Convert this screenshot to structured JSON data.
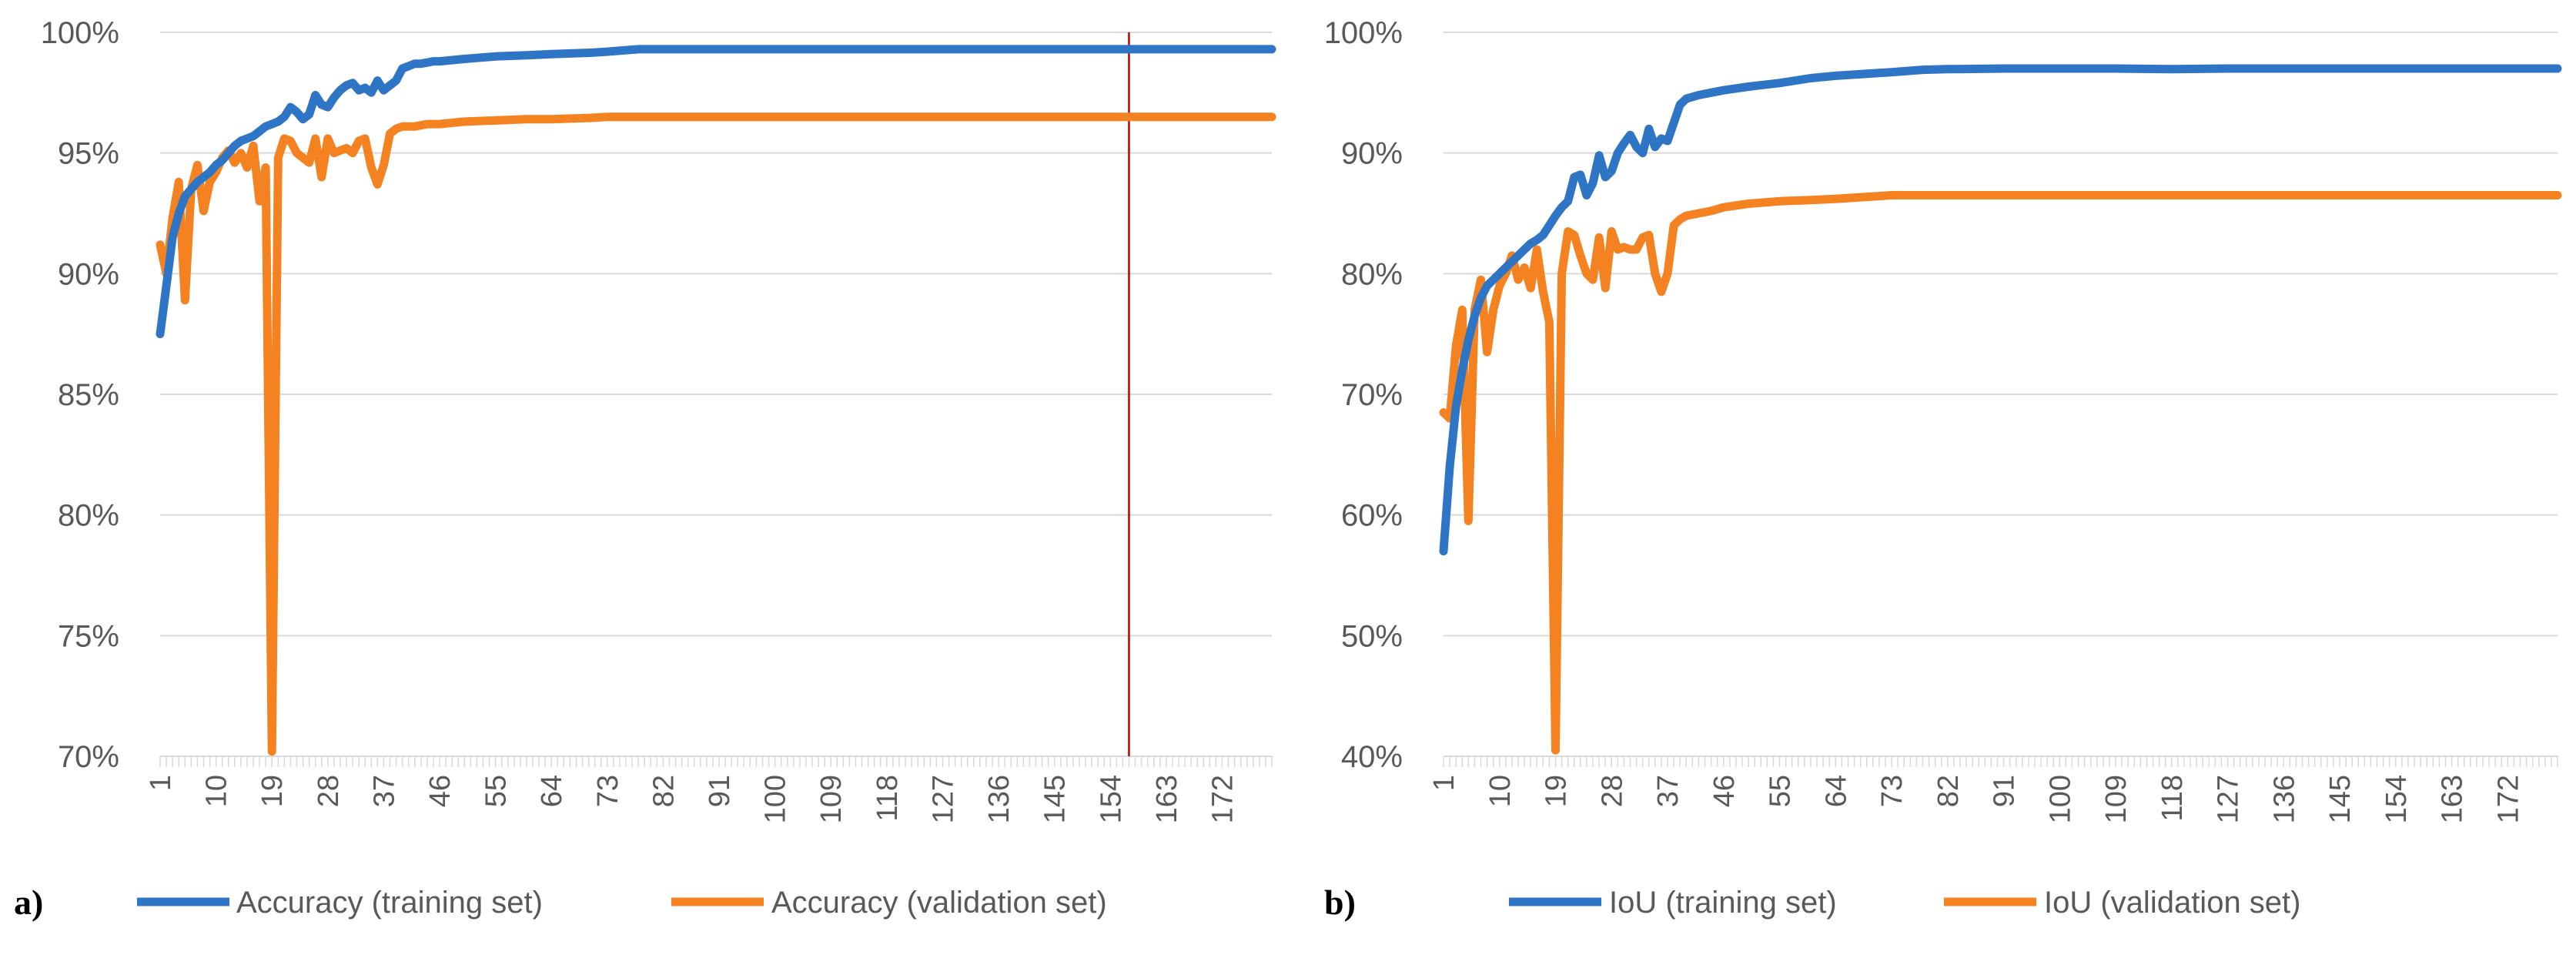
{
  "chart_data": [
    {
      "type": "line",
      "panel_label": "a)",
      "x_tick_labels": [
        "1",
        "10",
        "19",
        "28",
        "37",
        "46",
        "55",
        "64",
        "73",
        "82",
        "91",
        "100",
        "109",
        "118",
        "127",
        "136",
        "145",
        "154",
        "163",
        "172"
      ],
      "x_range": [
        1,
        180
      ],
      "y_tick_labels": [
        "100%",
        "95%",
        "90%",
        "85%",
        "80%",
        "75%",
        "70%"
      ],
      "ylim": [
        70,
        100
      ],
      "y_unit": "%",
      "grid": true,
      "legend_position": "bottom",
      "reference_line_x": 157,
      "colors": {
        "training": "#2e75c6",
        "validation": "#f58221",
        "reference_line": "#c00000"
      },
      "series": [
        {
          "name": "Accuracy (training set)",
          "key": "training",
          "points": [
            [
              1,
              87.5
            ],
            [
              2,
              89.5
            ],
            [
              3,
              91.5
            ],
            [
              4,
              92.5
            ],
            [
              5,
              93.2
            ],
            [
              6,
              93.5
            ],
            [
              7,
              93.8
            ],
            [
              8,
              94.0
            ],
            [
              9,
              94.2
            ],
            [
              10,
              94.5
            ],
            [
              11,
              94.7
            ],
            [
              12,
              95.0
            ],
            [
              13,
              95.3
            ],
            [
              14,
              95.5
            ],
            [
              15,
              95.6
            ],
            [
              16,
              95.7
            ],
            [
              17,
              95.9
            ],
            [
              18,
              96.1
            ],
            [
              19,
              96.2
            ],
            [
              20,
              96.3
            ],
            [
              21,
              96.5
            ],
            [
              22,
              96.9
            ],
            [
              23,
              96.7
            ],
            [
              24,
              96.4
            ],
            [
              25,
              96.6
            ],
            [
              26,
              97.4
            ],
            [
              27,
              97.0
            ],
            [
              28,
              96.9
            ],
            [
              29,
              97.3
            ],
            [
              30,
              97.6
            ],
            [
              31,
              97.8
            ],
            [
              32,
              97.9
            ],
            [
              33,
              97.6
            ],
            [
              34,
              97.7
            ],
            [
              35,
              97.5
            ],
            [
              36,
              98.0
            ],
            [
              37,
              97.6
            ],
            [
              38,
              97.8
            ],
            [
              39,
              98.0
            ],
            [
              40,
              98.5
            ],
            [
              41,
              98.6
            ],
            [
              42,
              98.7
            ],
            [
              43,
              98.7
            ],
            [
              44,
              98.75
            ],
            [
              45,
              98.8
            ],
            [
              46,
              98.8
            ],
            [
              50,
              98.9
            ],
            [
              55,
              99.0
            ],
            [
              60,
              99.05
            ],
            [
              64,
              99.1
            ],
            [
              70,
              99.15
            ],
            [
              73,
              99.2
            ],
            [
              78,
              99.3
            ],
            [
              82,
              99.3
            ],
            [
              91,
              99.3
            ],
            [
              100,
              99.3
            ],
            [
              109,
              99.3
            ],
            [
              118,
              99.3
            ],
            [
              127,
              99.3
            ],
            [
              136,
              99.3
            ],
            [
              145,
              99.3
            ],
            [
              154,
              99.3
            ],
            [
              163,
              99.3
            ],
            [
              172,
              99.3
            ],
            [
              180,
              99.3
            ]
          ]
        },
        {
          "name": "Accuracy (validation set)",
          "key": "validation",
          "points": [
            [
              1,
              91.2
            ],
            [
              2,
              90.0
            ],
            [
              3,
              92.3
            ],
            [
              4,
              93.8
            ],
            [
              5,
              88.9
            ],
            [
              6,
              93.5
            ],
            [
              7,
              94.5
            ],
            [
              8,
              92.6
            ],
            [
              9,
              93.8
            ],
            [
              10,
              94.2
            ],
            [
              11,
              94.8
            ],
            [
              12,
              95.1
            ],
            [
              13,
              94.6
            ],
            [
              14,
              95.0
            ],
            [
              15,
              94.4
            ],
            [
              16,
              95.3
            ],
            [
              17,
              93.0
            ],
            [
              18,
              94.4
            ],
            [
              19,
              70.2
            ],
            [
              20,
              94.8
            ],
            [
              21,
              95.6
            ],
            [
              22,
              95.5
            ],
            [
              23,
              95.0
            ],
            [
              24,
              94.8
            ],
            [
              25,
              94.6
            ],
            [
              26,
              95.6
            ],
            [
              27,
              94.0
            ],
            [
              28,
              95.6
            ],
            [
              29,
              95.0
            ],
            [
              30,
              95.1
            ],
            [
              31,
              95.2
            ],
            [
              32,
              95.0
            ],
            [
              33,
              95.5
            ],
            [
              34,
              95.6
            ],
            [
              35,
              94.4
            ],
            [
              36,
              93.7
            ],
            [
              37,
              94.5
            ],
            [
              38,
              95.8
            ],
            [
              39,
              96.0
            ],
            [
              40,
              96.1
            ],
            [
              42,
              96.1
            ],
            [
              44,
              96.2
            ],
            [
              46,
              96.2
            ],
            [
              50,
              96.3
            ],
            [
              55,
              96.35
            ],
            [
              60,
              96.4
            ],
            [
              64,
              96.4
            ],
            [
              70,
              96.45
            ],
            [
              73,
              96.5
            ],
            [
              82,
              96.5
            ],
            [
              91,
              96.5
            ],
            [
              100,
              96.5
            ],
            [
              109,
              96.5
            ],
            [
              118,
              96.5
            ],
            [
              127,
              96.5
            ],
            [
              136,
              96.5
            ],
            [
              145,
              96.5
            ],
            [
              154,
              96.5
            ],
            [
              163,
              96.5
            ],
            [
              172,
              96.5
            ],
            [
              180,
              96.5
            ]
          ]
        }
      ]
    },
    {
      "type": "line",
      "panel_label": "b)",
      "x_tick_labels": [
        "1",
        "10",
        "19",
        "28",
        "37",
        "46",
        "55",
        "64",
        "73",
        "82",
        "91",
        "100",
        "109",
        "118",
        "127",
        "136",
        "145",
        "154",
        "163",
        "172"
      ],
      "x_range": [
        1,
        180
      ],
      "y_tick_labels": [
        "100%",
        "90%",
        "80%",
        "70%",
        "60%",
        "50%",
        "40%"
      ],
      "ylim": [
        40,
        100
      ],
      "y_unit": "%",
      "grid": true,
      "legend_position": "bottom",
      "colors": {
        "training": "#2e75c6",
        "validation": "#f58221"
      },
      "series": [
        {
          "name": "IoU (training set)",
          "key": "training",
          "points": [
            [
              1,
              57.0
            ],
            [
              2,
              64.0
            ],
            [
              3,
              69.0
            ],
            [
              4,
              72.0
            ],
            [
              5,
              74.5
            ],
            [
              6,
              76.5
            ],
            [
              7,
              78.0
            ],
            [
              8,
              79.0
            ],
            [
              9,
              79.5
            ],
            [
              10,
              80.0
            ],
            [
              11,
              80.5
            ],
            [
              12,
              81.0
            ],
            [
              13,
              81.5
            ],
            [
              14,
              82.0
            ],
            [
              15,
              82.5
            ],
            [
              16,
              82.8
            ],
            [
              17,
              83.2
            ],
            [
              18,
              84.0
            ],
            [
              19,
              84.8
            ],
            [
              20,
              85.5
            ],
            [
              21,
              86.0
            ],
            [
              22,
              88.0
            ],
            [
              23,
              88.2
            ],
            [
              24,
              86.5
            ],
            [
              25,
              87.5
            ],
            [
              26,
              89.8
            ],
            [
              27,
              88.0
            ],
            [
              28,
              88.5
            ],
            [
              29,
              90.0
            ],
            [
              30,
              90.8
            ],
            [
              31,
              91.5
            ],
            [
              32,
              90.5
            ],
            [
              33,
              90.0
            ],
            [
              34,
              92.0
            ],
            [
              35,
              90.5
            ],
            [
              36,
              91.2
            ],
            [
              37,
              91.0
            ],
            [
              38,
              92.5
            ],
            [
              39,
              94.0
            ],
            [
              40,
              94.5
            ],
            [
              42,
              94.8
            ],
            [
              44,
              95.0
            ],
            [
              46,
              95.2
            ],
            [
              50,
              95.5
            ],
            [
              55,
              95.8
            ],
            [
              60,
              96.2
            ],
            [
              64,
              96.4
            ],
            [
              70,
              96.6
            ],
            [
              73,
              96.7
            ],
            [
              78,
              96.9
            ],
            [
              82,
              96.95
            ],
            [
              91,
              97.0
            ],
            [
              100,
              97.0
            ],
            [
              109,
              97.0
            ],
            [
              118,
              96.95
            ],
            [
              127,
              97.0
            ],
            [
              136,
              97.0
            ],
            [
              145,
              97.0
            ],
            [
              154,
              97.0
            ],
            [
              163,
              97.0
            ],
            [
              172,
              97.0
            ],
            [
              180,
              97.0
            ]
          ]
        },
        {
          "name": "IoU (validation set)",
          "key": "validation",
          "points": [
            [
              1,
              68.5
            ],
            [
              2,
              68.0
            ],
            [
              3,
              74.0
            ],
            [
              4,
              77.0
            ],
            [
              5,
              59.5
            ],
            [
              6,
              77.0
            ],
            [
              7,
              79.5
            ],
            [
              8,
              73.5
            ],
            [
              9,
              77.0
            ],
            [
              10,
              79.0
            ],
            [
              11,
              80.0
            ],
            [
              12,
              81.5
            ],
            [
              13,
              79.5
            ],
            [
              14,
              80.5
            ],
            [
              15,
              78.8
            ],
            [
              16,
              82.0
            ],
            [
              17,
              78.5
            ],
            [
              18,
              76.0
            ],
            [
              19,
              40.5
            ],
            [
              20,
              80.0
            ],
            [
              21,
              83.5
            ],
            [
              22,
              83.2
            ],
            [
              23,
              81.5
            ],
            [
              24,
              80.0
            ],
            [
              25,
              79.5
            ],
            [
              26,
              83.0
            ],
            [
              27,
              78.8
            ],
            [
              28,
              83.5
            ],
            [
              29,
              82.0
            ],
            [
              30,
              82.2
            ],
            [
              31,
              82.0
            ],
            [
              32,
              82.0
            ],
            [
              33,
              83.0
            ],
            [
              34,
              83.2
            ],
            [
              35,
              80.0
            ],
            [
              36,
              78.5
            ],
            [
              37,
              80.0
            ],
            [
              38,
              84.0
            ],
            [
              39,
              84.5
            ],
            [
              40,
              84.8
            ],
            [
              42,
              85.0
            ],
            [
              44,
              85.2
            ],
            [
              46,
              85.5
            ],
            [
              50,
              85.8
            ],
            [
              55,
              86.0
            ],
            [
              60,
              86.1
            ],
            [
              64,
              86.2
            ],
            [
              70,
              86.4
            ],
            [
              73,
              86.5
            ],
            [
              82,
              86.5
            ],
            [
              91,
              86.5
            ],
            [
              100,
              86.5
            ],
            [
              109,
              86.5
            ],
            [
              118,
              86.5
            ],
            [
              127,
              86.5
            ],
            [
              136,
              86.5
            ],
            [
              145,
              86.5
            ],
            [
              154,
              86.5
            ],
            [
              163,
              86.5
            ],
            [
              172,
              86.5
            ],
            [
              180,
              86.5
            ]
          ]
        }
      ]
    }
  ]
}
